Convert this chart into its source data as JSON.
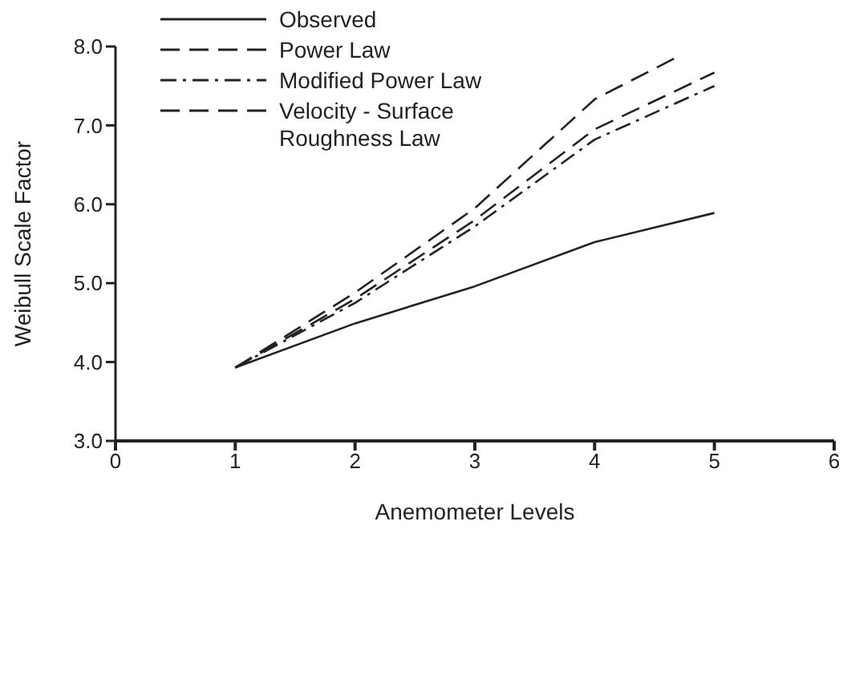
{
  "chart_data": {
    "type": "line",
    "xlabel": "Anemometer Levels",
    "ylabel": "Weibull Scale Factor",
    "x": [
      1,
      2,
      3,
      4,
      5
    ],
    "series": [
      {
        "name": "Observed",
        "color": "#222222",
        "line_style": "solid",
        "values": [
          3.93,
          4.49,
          4.96,
          5.52,
          5.89
        ]
      },
      {
        "name": "Power Law",
        "color": "#222222",
        "line_style": "dashed",
        "values": [
          3.93,
          4.8,
          5.8,
          6.95,
          7.67
        ]
      },
      {
        "name": "Modified Power Law",
        "color": "#222222",
        "line_style": "dotted",
        "values": [
          3.93,
          4.75,
          5.72,
          6.82,
          7.5
        ]
      },
      {
        "name": "Velocity - Surface Roughness Law",
        "color": "#222222",
        "line_style": "dashed",
        "x": [
          1,
          2,
          3,
          4,
          4.68
        ],
        "values": [
          3.93,
          4.88,
          5.95,
          7.33,
          7.86
        ]
      }
    ],
    "xlim": [
      0,
      6
    ],
    "xticks": [
      0,
      1,
      2,
      3,
      4,
      5,
      6
    ],
    "ylim": [
      3,
      8
    ],
    "yticks": [
      {
        "value": 3,
        "label": "3.0"
      },
      {
        "value": 4,
        "label": "4.0"
      },
      {
        "value": 5,
        "label": "5.0"
      },
      {
        "value": 6,
        "label": "6.0"
      },
      {
        "value": 7,
        "label": "7.0"
      },
      {
        "value": 8,
        "label": "8.0"
      }
    ],
    "grid": false,
    "legend": "top left",
    "marker": "none"
  }
}
